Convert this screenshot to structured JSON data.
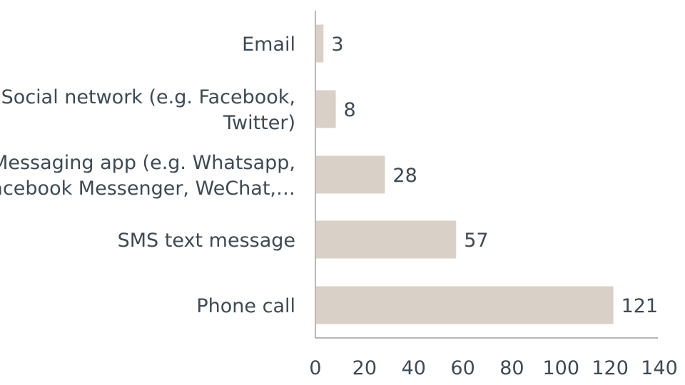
{
  "chart_data": {
    "type": "bar",
    "orientation": "horizontal",
    "categories": [
      [
        "Email"
      ],
      [
        "Social network (e.g. Facebook,",
        "Twitter)"
      ],
      [
        "Messaging app (e.g. Whatsapp,",
        "Facebook Messenger, WeChat,…"
      ],
      [
        "SMS text message"
      ],
      [
        "Phone call"
      ]
    ],
    "values": [
      3,
      8,
      28,
      57,
      121
    ],
    "value_labels": [
      "3",
      "8",
      "28",
      "57",
      "121"
    ],
    "xlim": [
      0,
      140
    ],
    "x_ticks": [
      0,
      20,
      40,
      60,
      80,
      100,
      120,
      140
    ],
    "title": "",
    "xlabel": "",
    "ylabel": "",
    "grid": false,
    "legend": "none",
    "colors": {
      "bar": "#d9d1c7",
      "text": "#3d4a55",
      "axis": "#8a8a8a"
    }
  }
}
